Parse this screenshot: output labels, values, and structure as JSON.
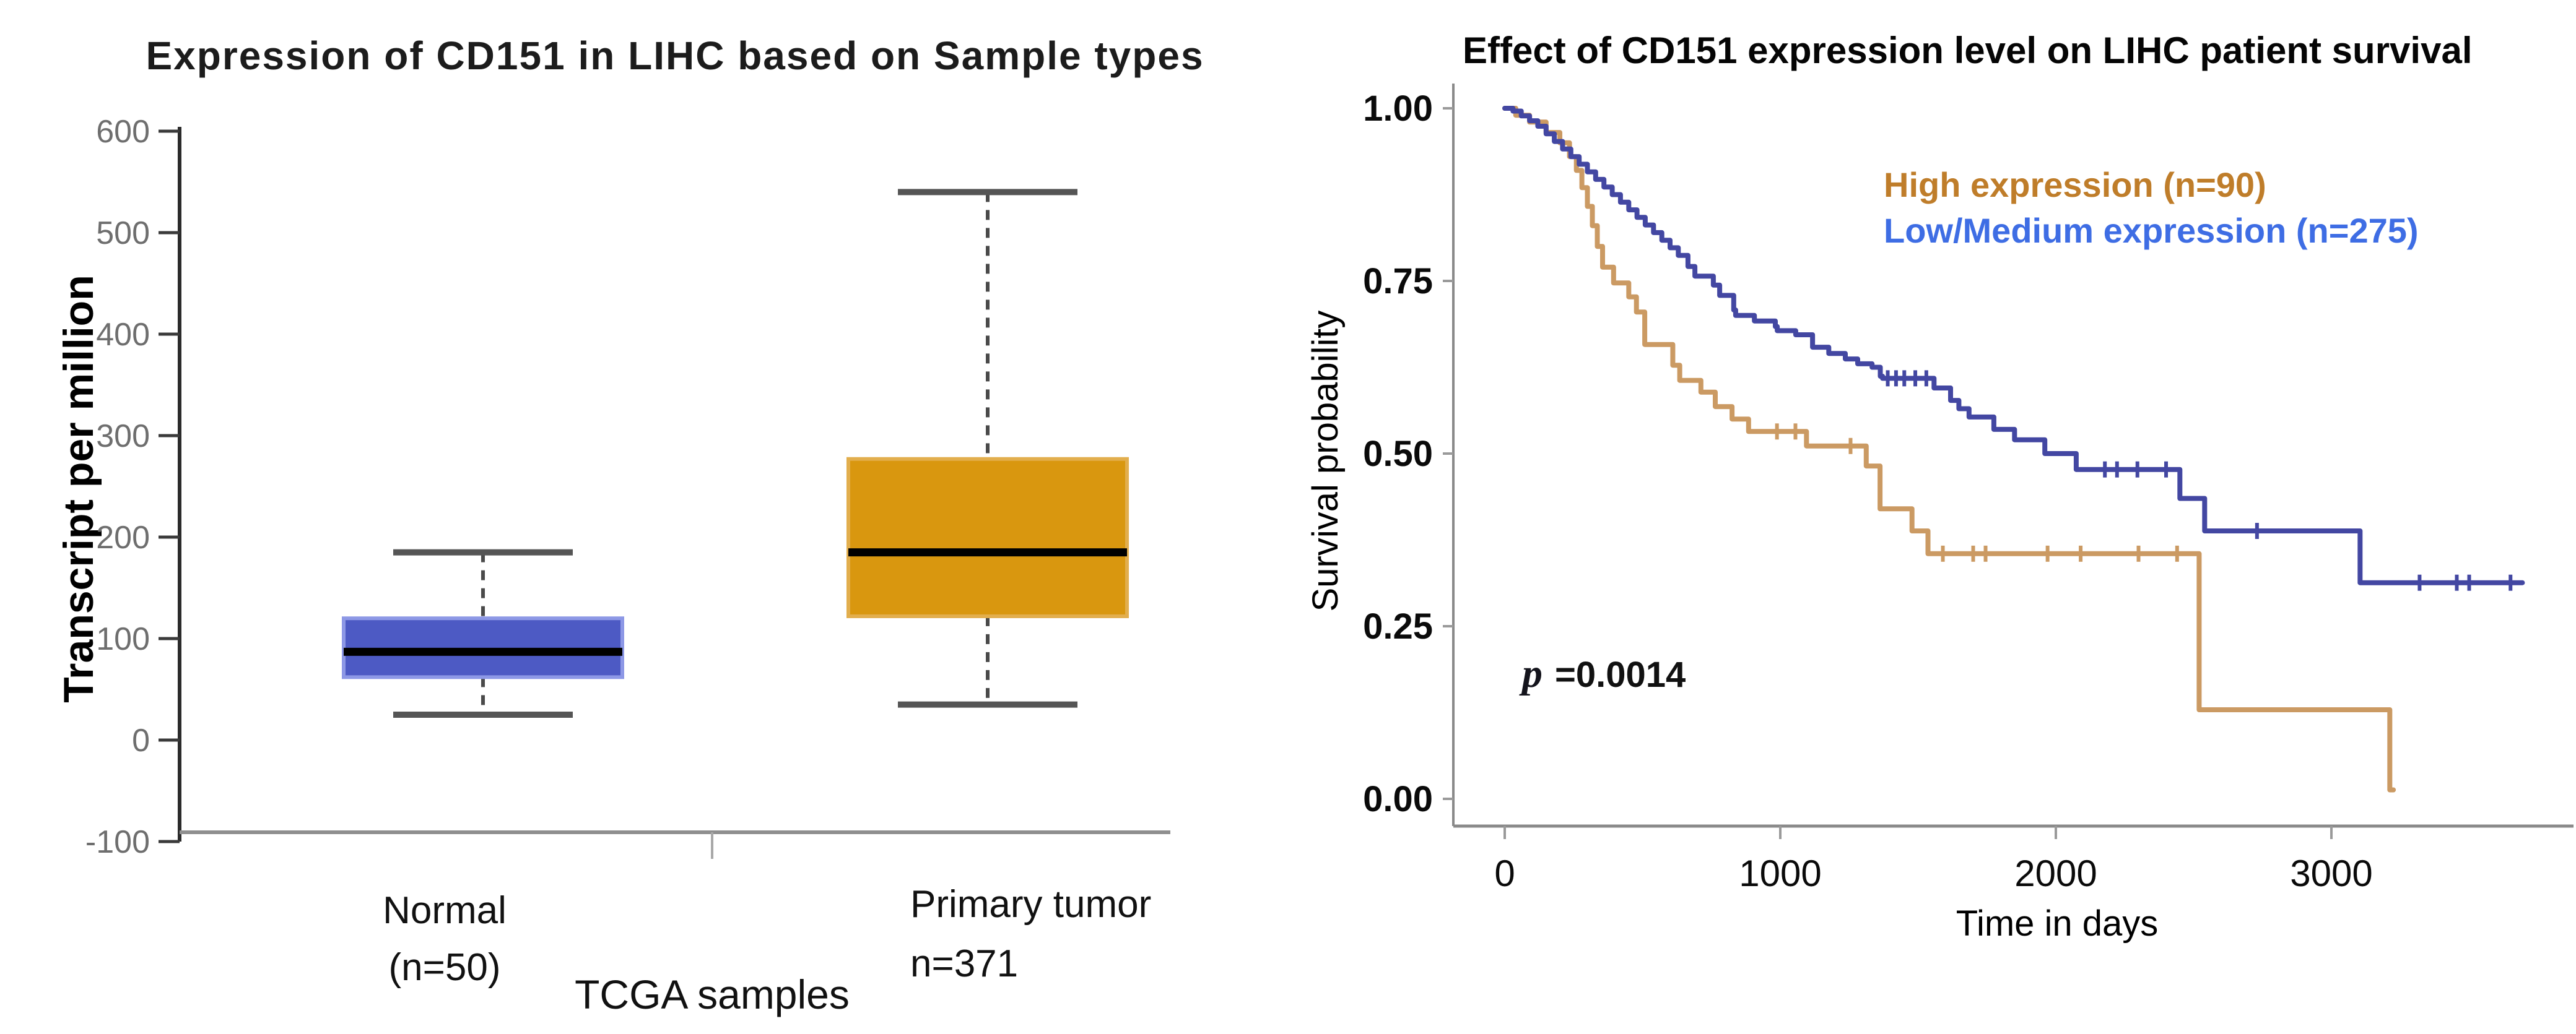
{
  "page": {
    "background": "#ffffff"
  },
  "chart_data": [
    {
      "type": "box",
      "title": "Expression of CD151 in LIHC based on Sample types",
      "xlabel": "TCGA samples",
      "ylabel": "Transcript per million",
      "ylim": [
        -100,
        600
      ],
      "yticks": [
        "600",
        "500",
        "400",
        "300",
        "200",
        "100",
        "0",
        "-100"
      ],
      "grid": false,
      "categories": [
        {
          "label": "Normal",
          "sublabel": "(n=50)"
        },
        {
          "label": "Primary tumor",
          "sublabel": "n=371"
        }
      ],
      "boxes": [
        {
          "name": "Normal",
          "n": 50,
          "whisker_low": 25,
          "q1": 62,
          "median": 87,
          "q3": 120,
          "whisker_high": 185,
          "fill": "#4d5ac4",
          "edge": "#8d98e6"
        },
        {
          "name": "Primary tumor",
          "n": 371,
          "whisker_low": 35,
          "q1": 122,
          "median": 185,
          "q3": 277,
          "whisker_high": 540,
          "fill": "#d9970f",
          "edge": "#e2ae4d"
        }
      ],
      "median_color": "#000000",
      "whisker_color": "#4a4a4a"
    },
    {
      "type": "line",
      "subtype": "kaplan_meier_step",
      "title": "Effect of CD151 expression level on LIHC patient survival",
      "xlabel": "Time in days",
      "ylabel": "Survival probability",
      "xlim": [
        0,
        3870
      ],
      "ylim": [
        0,
        1
      ],
      "xticks": [
        "0",
        "1000",
        "2000",
        "3000"
      ],
      "yticks": [
        "1.00",
        "0.75",
        "0.50",
        "0.25",
        "0.00"
      ],
      "grid": false,
      "legend_position": "top-right",
      "p_value": "0.0014",
      "annotation": {
        "prefix_italic": "p",
        "text": " =0.0014"
      },
      "series": [
        {
          "name": "High expression (n=90)",
          "n": 90,
          "legend_color": "#bf7d2a",
          "line_color": "#cb9a63",
          "points": [
            [
              0,
              1.0
            ],
            [
              40,
              0.99
            ],
            [
              90,
              0.98
            ],
            [
              150,
              0.965
            ],
            [
              200,
              0.95
            ],
            [
              235,
              0.93
            ],
            [
              260,
              0.91
            ],
            [
              280,
              0.885
            ],
            [
              300,
              0.858
            ],
            [
              318,
              0.83
            ],
            [
              336,
              0.8
            ],
            [
              355,
              0.77
            ],
            [
              395,
              0.747
            ],
            [
              450,
              0.727
            ],
            [
              478,
              0.705
            ],
            [
              508,
              0.658
            ],
            [
              610,
              0.628
            ],
            [
              635,
              0.606
            ],
            [
              712,
              0.589
            ],
            [
              764,
              0.568
            ],
            [
              825,
              0.55
            ],
            [
              885,
              0.532
            ],
            [
              1095,
              0.511
            ],
            [
              1312,
              0.482
            ],
            [
              1362,
              0.42
            ],
            [
              1478,
              0.388
            ],
            [
              1536,
              0.355
            ],
            [
              2520,
              0.129
            ],
            [
              3212,
              0.013
            ],
            [
              3225,
              0.013
            ]
          ],
          "censor_times": [
            988,
            1055,
            1255,
            1590,
            1700,
            1745,
            1970,
            2090,
            2300,
            2440
          ]
        },
        {
          "name": "Low/Medium expression (n=275)",
          "n": 275,
          "legend_color": "#3e6de4",
          "line_color": "#4347a2",
          "points": [
            [
              0,
              1.0
            ],
            [
              30,
              0.996
            ],
            [
              60,
              0.989
            ],
            [
              90,
              0.982
            ],
            [
              120,
              0.974
            ],
            [
              150,
              0.963
            ],
            [
              180,
              0.952
            ],
            [
              210,
              0.941
            ],
            [
              240,
              0.93
            ],
            [
              270,
              0.919
            ],
            [
              300,
              0.908
            ],
            [
              330,
              0.897
            ],
            [
              360,
              0.886
            ],
            [
              390,
              0.875
            ],
            [
              420,
              0.864
            ],
            [
              450,
              0.853
            ],
            [
              480,
              0.842
            ],
            [
              510,
              0.831
            ],
            [
              540,
              0.82
            ],
            [
              570,
              0.809
            ],
            [
              600,
              0.798
            ],
            [
              630,
              0.787
            ],
            [
              665,
              0.771
            ],
            [
              690,
              0.757
            ],
            [
              757,
              0.744
            ],
            [
              780,
              0.729
            ],
            [
              831,
              0.708
            ],
            [
              838,
              0.7
            ],
            [
              906,
              0.692
            ],
            [
              982,
              0.684
            ],
            [
              989,
              0.678
            ],
            [
              1056,
              0.672
            ],
            [
              1117,
              0.654
            ],
            [
              1176,
              0.645
            ],
            [
              1236,
              0.637
            ],
            [
              1281,
              0.63
            ],
            [
              1333,
              0.625
            ],
            [
              1363,
              0.612
            ],
            [
              1371,
              0.609
            ],
            [
              1558,
              0.595
            ],
            [
              1618,
              0.577
            ],
            [
              1648,
              0.565
            ],
            [
              1685,
              0.553
            ],
            [
              1775,
              0.535
            ],
            [
              1850,
              0.52
            ],
            [
              1960,
              0.5
            ],
            [
              2074,
              0.477
            ],
            [
              2450,
              0.435
            ],
            [
              2540,
              0.388
            ],
            [
              3104,
              0.313
            ],
            [
              3693,
              0.313
            ]
          ],
          "censor_times": [
            1390,
            1420,
            1450,
            1490,
            1530,
            2178,
            2222,
            2296,
            2400,
            2730,
            3320,
            3455,
            3500,
            3650
          ]
        }
      ]
    }
  ]
}
